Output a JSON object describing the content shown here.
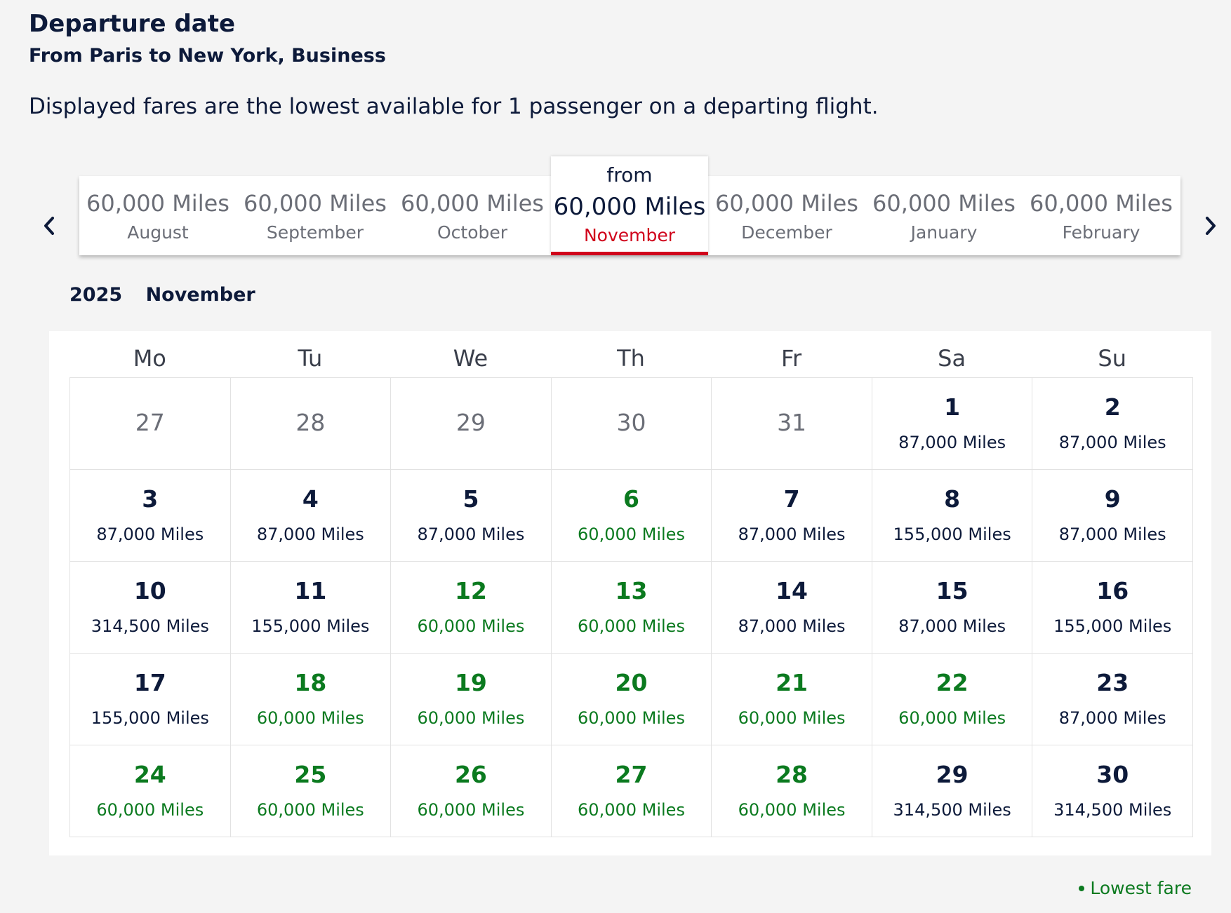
{
  "header": {
    "title": "Departure date",
    "subtitle": "From Paris to New York, Business",
    "info": "Displayed fares are the lowest available for 1 passenger on a departing flight."
  },
  "month_carousel": {
    "prev_icon": "chevron-left-icon",
    "next_icon": "chevron-right-icon",
    "from_label": "from",
    "months": [
      {
        "price": "60,000 Miles",
        "name": "August"
      },
      {
        "price": "60,000 Miles",
        "name": "September"
      },
      {
        "price": "60,000 Miles",
        "name": "October"
      },
      {
        "price": "60,000 Miles",
        "name": "November",
        "selected": true
      },
      {
        "price": "60,000 Miles",
        "name": "December"
      },
      {
        "price": "60,000 Miles",
        "name": "January"
      },
      {
        "price": "60,000 Miles",
        "name": "February"
      }
    ]
  },
  "calendar": {
    "year": "2025",
    "month": "November",
    "weekdays": [
      "Mo",
      "Tu",
      "We",
      "Th",
      "Fr",
      "Sa",
      "Su"
    ],
    "days": [
      {
        "day": "27",
        "outside": true
      },
      {
        "day": "28",
        "outside": true
      },
      {
        "day": "29",
        "outside": true
      },
      {
        "day": "30",
        "outside": true
      },
      {
        "day": "31",
        "outside": true
      },
      {
        "day": "1",
        "price": "87,000 Miles"
      },
      {
        "day": "2",
        "price": "87,000 Miles"
      },
      {
        "day": "3",
        "price": "87,000 Miles"
      },
      {
        "day": "4",
        "price": "87,000 Miles"
      },
      {
        "day": "5",
        "price": "87,000 Miles"
      },
      {
        "day": "6",
        "price": "60,000 Miles",
        "lowest": true
      },
      {
        "day": "7",
        "price": "87,000 Miles"
      },
      {
        "day": "8",
        "price": "155,000 Miles"
      },
      {
        "day": "9",
        "price": "87,000 Miles"
      },
      {
        "day": "10",
        "price": "314,500 Miles"
      },
      {
        "day": "11",
        "price": "155,000 Miles"
      },
      {
        "day": "12",
        "price": "60,000 Miles",
        "lowest": true
      },
      {
        "day": "13",
        "price": "60,000 Miles",
        "lowest": true
      },
      {
        "day": "14",
        "price": "87,000 Miles"
      },
      {
        "day": "15",
        "price": "87,000 Miles"
      },
      {
        "day": "16",
        "price": "155,000 Miles"
      },
      {
        "day": "17",
        "price": "155,000 Miles"
      },
      {
        "day": "18",
        "price": "60,000 Miles",
        "lowest": true
      },
      {
        "day": "19",
        "price": "60,000 Miles",
        "lowest": true
      },
      {
        "day": "20",
        "price": "60,000 Miles",
        "lowest": true
      },
      {
        "day": "21",
        "price": "60,000 Miles",
        "lowest": true
      },
      {
        "day": "22",
        "price": "60,000 Miles",
        "lowest": true
      },
      {
        "day": "23",
        "price": "87,000 Miles"
      },
      {
        "day": "24",
        "price": "60,000 Miles",
        "lowest": true
      },
      {
        "day": "25",
        "price": "60,000 Miles",
        "lowest": true
      },
      {
        "day": "26",
        "price": "60,000 Miles",
        "lowest": true
      },
      {
        "day": "27",
        "price": "60,000 Miles",
        "lowest": true
      },
      {
        "day": "28",
        "price": "60,000 Miles",
        "lowest": true
      },
      {
        "day": "29",
        "price": "314,500 Miles"
      },
      {
        "day": "30",
        "price": "314,500 Miles"
      }
    ]
  },
  "legend": {
    "label": "Lowest fare",
    "color": "#0b7a1f"
  },
  "colors": {
    "text": "#0d1a3a",
    "accent_red": "#d0021b",
    "lowest_green": "#0b7a1f",
    "muted": "#6b6e77"
  }
}
